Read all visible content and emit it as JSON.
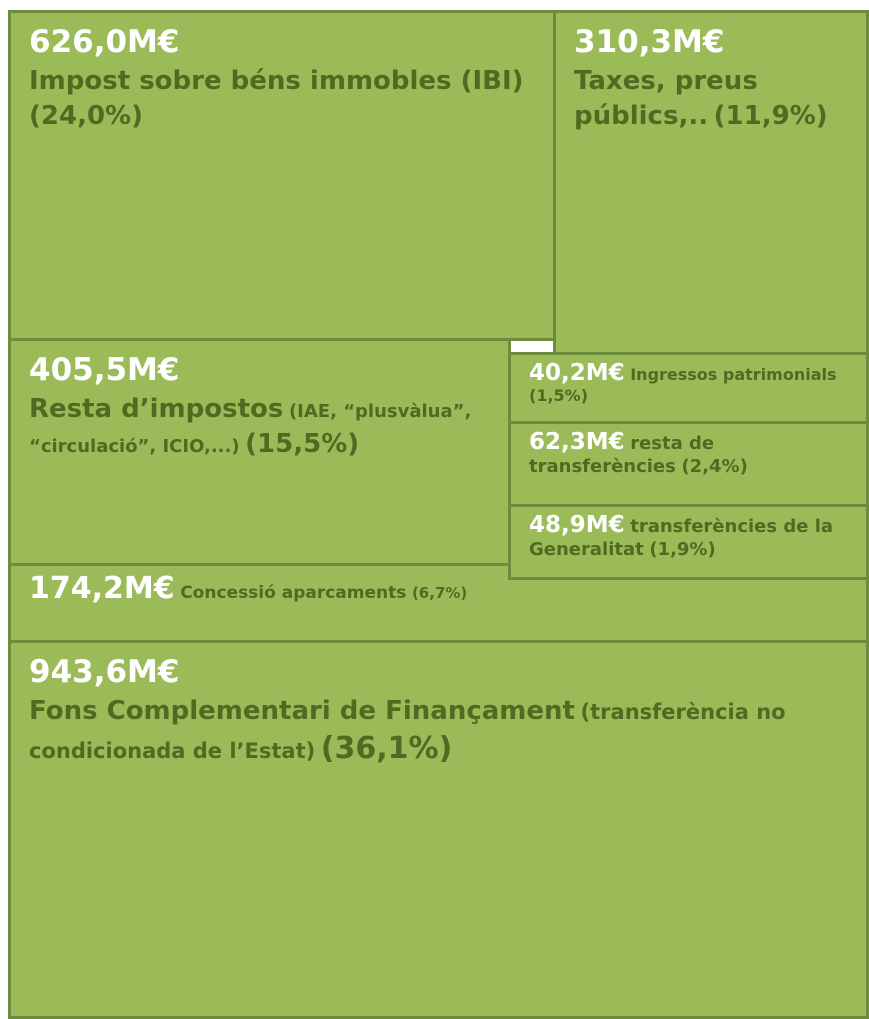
{
  "chart_data": {
    "type": "treemap",
    "categories": [
      "Impost sobre béns immobles (IBI)",
      "Taxes, preus públics,..",
      "Resta d’impostos",
      "Ingressos patrimonials",
      "resta de transferències",
      "transferències de la Generalitat",
      "Concessió aparcaments",
      "Fons Complementari de Finançament"
    ],
    "category_notes": [
      null,
      null,
      "(IAE, “plusvàlua”, “circulació”, ICIO,...)",
      null,
      null,
      null,
      null,
      "(transferència no condicionada de l’Estat)"
    ],
    "values": [
      626.0,
      310.3,
      405.5,
      40.2,
      62.3,
      48.9,
      174.2,
      943.6
    ],
    "value_labels": [
      "626,0M€",
      "310,3M€",
      "405,5M€",
      "40,2M€",
      "62,3M€",
      "48,9M€",
      "174,2M€",
      "943,6M€"
    ],
    "share_labels": [
      "(24,0%)",
      "(11,9%)",
      "(15,5%)",
      "(1,5%)",
      "(2,4%)",
      "(1,9%)",
      "(6,7%)",
      "(36,1%)"
    ],
    "color": "#9bbb59",
    "border_color": "#6f8b3d",
    "label_color": "#4f6b22",
    "value_color": "#ffffff"
  }
}
